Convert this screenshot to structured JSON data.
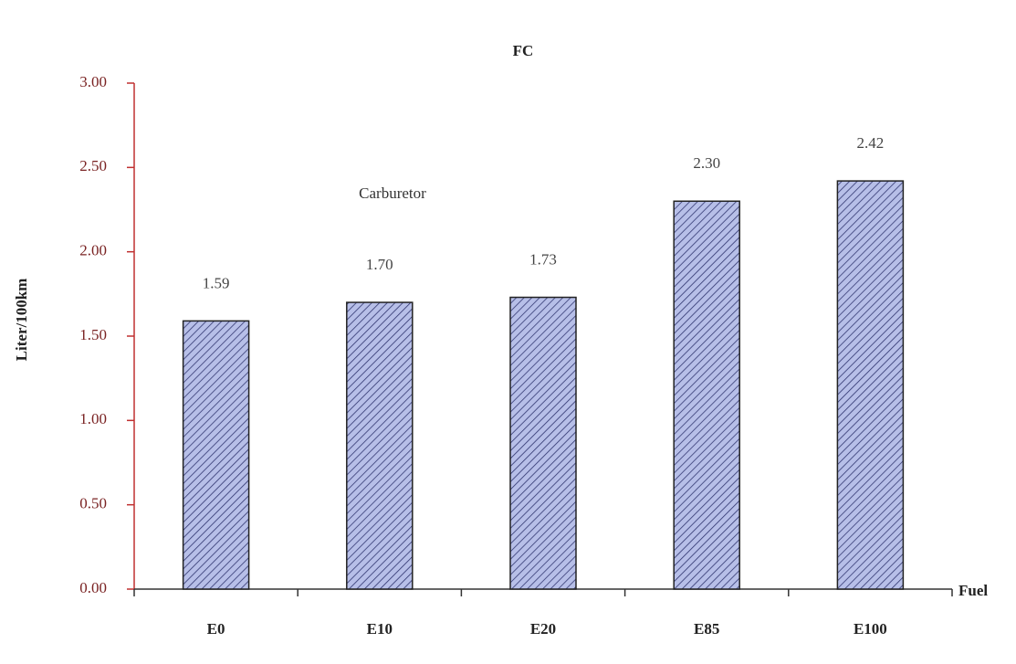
{
  "chart_data": {
    "type": "bar",
    "title": "FC",
    "annotation": "Carburetor",
    "x_label": "Fuel",
    "y_label": "Liter/100km",
    "categories": [
      "E0",
      "E10",
      "E20",
      "E85",
      "E100"
    ],
    "values": [
      1.59,
      1.7,
      1.73,
      2.3,
      2.42
    ],
    "value_labels": [
      "1.59",
      "1.70",
      "1.73",
      "2.30",
      "2.42"
    ],
    "color": "#b7bfe8",
    "ylim": [
      0,
      3
    ],
    "yticks": [
      {
        "value": 0,
        "label": "0.00"
      },
      {
        "value": 0.5,
        "label": "0.50"
      },
      {
        "value": 1,
        "label": "1.00"
      },
      {
        "value": 1.5,
        "label": "1.50"
      },
      {
        "value": 2,
        "label": "2.00"
      },
      {
        "value": 2.5,
        "label": "2.50"
      },
      {
        "value": 3,
        "label": "3.00"
      }
    ],
    "grid": false
  }
}
